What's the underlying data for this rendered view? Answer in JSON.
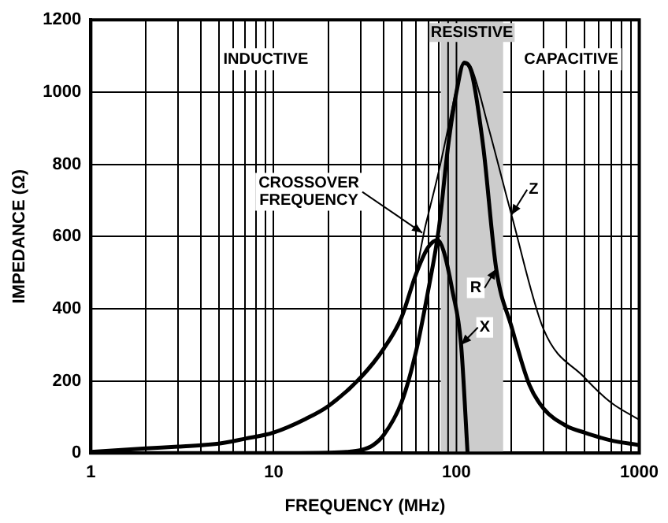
{
  "chart_data": {
    "type": "line",
    "xlabel": "FREQUENCY (MHz)",
    "ylabel": "IMPEDANCE (Ω)",
    "log": "x",
    "grid": true,
    "legend": false,
    "marker": "none",
    "line_style": "solid",
    "xlim": [
      1,
      1000
    ],
    "ylim": [
      0,
      1200
    ],
    "xticks": [
      1,
      {
        "value": 2,
        "label": null
      },
      {
        "value": 3,
        "label": null
      },
      {
        "value": 4,
        "label": null
      },
      {
        "value": 5,
        "label": null
      },
      {
        "value": 6,
        "label": null
      },
      {
        "value": 7,
        "label": null
      },
      {
        "value": 8,
        "label": null
      },
      {
        "value": 9,
        "label": null
      },
      10,
      {
        "value": 20,
        "label": null
      },
      {
        "value": 30,
        "label": null
      },
      {
        "value": 40,
        "label": null
      },
      {
        "value": 50,
        "label": null
      },
      {
        "value": 60,
        "label": null
      },
      {
        "value": 70,
        "label": null
      },
      {
        "value": 80,
        "label": null
      },
      {
        "value": 90,
        "label": null
      },
      100,
      {
        "value": 200,
        "label": null
      },
      {
        "value": 300,
        "label": null
      },
      {
        "value": 400,
        "label": null
      },
      {
        "value": 500,
        "label": null
      },
      {
        "value": 600,
        "label": null
      },
      {
        "value": 700,
        "label": null
      },
      {
        "value": 800,
        "label": null
      },
      {
        "value": 900,
        "label": null
      },
      1000
    ],
    "yticks": [
      0,
      200,
      400,
      600,
      800,
      1000,
      1200
    ],
    "series": [
      {
        "color": "#000000",
        "x": [
          1,
          10,
          20,
          25,
          30,
          35,
          40,
          50,
          60,
          70,
          80,
          90,
          100,
          110,
          120,
          140,
          165,
          200,
          250,
          300,
          400,
          500,
          700,
          1000
        ],
        "values": [
          0,
          0,
          1,
          3,
          8,
          22,
          50,
          140,
          280,
          450,
          620,
          850,
          1000,
          1080,
          1060,
          850,
          510,
          350,
          190,
          123,
          75,
          57,
          35,
          22
        ]
      },
      {
        "color": "#000000",
        "x": [
          1,
          2,
          3,
          5,
          7,
          10,
          15,
          20,
          30,
          40,
          50,
          60,
          70,
          79,
          85,
          95,
          106,
          115
        ],
        "values": [
          3,
          13,
          18,
          26,
          40,
          57,
          95,
          131,
          210,
          289,
          375,
          495,
          570,
          590,
          560,
          450,
          300,
          0
        ]
      },
      {
        "color": "#000000",
        "x": [
          1,
          2,
          3,
          5,
          7,
          10,
          15,
          20,
          30,
          40,
          50,
          60,
          67,
          70,
          80,
          90,
          100,
          110,
          120,
          150,
          200,
          300,
          500,
          700,
          1000
        ],
        "values": [
          3,
          13,
          18,
          26,
          40,
          57,
          95,
          131,
          210,
          290,
          380,
          500,
          620,
          660,
          780,
          900,
          1010,
          1085,
          1070,
          900,
          660,
          342,
          210,
          140,
          92
        ]
      }
    ],
    "bands": [
      {
        "axis": "x",
        "from": 82,
        "to": 180,
        "label": "RESISTIVE",
        "color": "#cccccc"
      }
    ],
    "annotations": [
      "INDUCTIVE",
      "CAPACITIVE",
      {
        "text": "CROSSOVER\nFREQUENCY",
        "x": 65,
        "y": 610
      },
      {
        "text": "R",
        "x": 165,
        "y": 510
      },
      {
        "text": "X",
        "x": 106,
        "y": 300
      },
      {
        "text": "Z",
        "x": 200,
        "y": 660
      }
    ]
  }
}
